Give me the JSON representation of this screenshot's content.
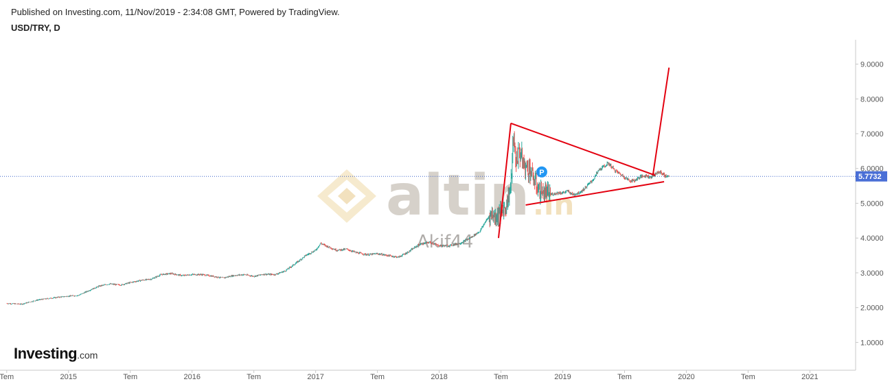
{
  "header": {
    "published": "Published on Investing.com, 11/Nov/2019 - 2:34:08 GMT, Powered by TradingView.",
    "symbol": "USD/TRY, D"
  },
  "logo": {
    "brand": "Investing",
    "suffix": ".com"
  },
  "watermark": {
    "brand": "altin",
    "suffix": ".in",
    "author": "Akif44"
  },
  "colors": {
    "up": "#26a69a",
    "down": "#ef5350",
    "trendline": "#e3000f",
    "price_line": "#3b63c9",
    "price_tag": "#4a6fd6",
    "marker": "#2196f3"
  },
  "marker": {
    "label": "P"
  },
  "chart_data": {
    "type": "candlestick",
    "title": "USD/TRY, D",
    "y_axis": {
      "position": "right",
      "ylim": [
        0.2,
        9.7
      ],
      "ticks": [
        "1.0000",
        "2.0000",
        "3.0000",
        "4.0000",
        "5.0000",
        "6.0000",
        "7.0000",
        "8.0000",
        "9.0000"
      ]
    },
    "x_axis": {
      "ticks": [
        {
          "label": "Tem",
          "t": 2014.5
        },
        {
          "label": "2015",
          "t": 2015.0
        },
        {
          "label": "Tem",
          "t": 2015.5
        },
        {
          "label": "2016",
          "t": 2016.0
        },
        {
          "label": "Tem",
          "t": 2016.5
        },
        {
          "label": "2017",
          "t": 2017.0
        },
        {
          "label": "Tem",
          "t": 2017.5
        },
        {
          "label": "2018",
          "t": 2018.0
        },
        {
          "label": "Tem",
          "t": 2018.5
        },
        {
          "label": "2019",
          "t": 2019.0
        },
        {
          "label": "Tem",
          "t": 2019.5
        },
        {
          "label": "2020",
          "t": 2020.0
        },
        {
          "label": "Tem",
          "t": 2020.5
        },
        {
          "label": "2021",
          "t": 2021.0
        }
      ],
      "range": [
        2014.49,
        2021.37
      ]
    },
    "last_price": "5.7732",
    "series": [
      {
        "t": 2014.5,
        "v": 2.12
      },
      {
        "t": 2014.62,
        "v": 2.1
      },
      {
        "t": 2014.75,
        "v": 2.22
      },
      {
        "t": 2014.92,
        "v": 2.3
      },
      {
        "t": 2015.0,
        "v": 2.33
      },
      {
        "t": 2015.08,
        "v": 2.35
      },
      {
        "t": 2015.17,
        "v": 2.5
      },
      {
        "t": 2015.25,
        "v": 2.62
      },
      {
        "t": 2015.33,
        "v": 2.68
      },
      {
        "t": 2015.42,
        "v": 2.65
      },
      {
        "t": 2015.5,
        "v": 2.72
      },
      {
        "t": 2015.58,
        "v": 2.78
      },
      {
        "t": 2015.67,
        "v": 2.82
      },
      {
        "t": 2015.75,
        "v": 2.95
      },
      {
        "t": 2015.83,
        "v": 2.98
      },
      {
        "t": 2015.92,
        "v": 2.92
      },
      {
        "t": 2016.0,
        "v": 2.95
      },
      {
        "t": 2016.08,
        "v": 2.95
      },
      {
        "t": 2016.17,
        "v": 2.9
      },
      {
        "t": 2016.25,
        "v": 2.85
      },
      {
        "t": 2016.33,
        "v": 2.92
      },
      {
        "t": 2016.42,
        "v": 2.95
      },
      {
        "t": 2016.5,
        "v": 2.9
      },
      {
        "t": 2016.58,
        "v": 2.96
      },
      {
        "t": 2016.67,
        "v": 2.95
      },
      {
        "t": 2016.75,
        "v": 3.05
      },
      {
        "t": 2016.83,
        "v": 3.25
      },
      {
        "t": 2016.92,
        "v": 3.5
      },
      {
        "t": 2017.0,
        "v": 3.65
      },
      {
        "t": 2017.04,
        "v": 3.85
      },
      {
        "t": 2017.08,
        "v": 3.78
      },
      {
        "t": 2017.17,
        "v": 3.65
      },
      {
        "t": 2017.25,
        "v": 3.68
      },
      {
        "t": 2017.33,
        "v": 3.58
      },
      {
        "t": 2017.42,
        "v": 3.52
      },
      {
        "t": 2017.5,
        "v": 3.55
      },
      {
        "t": 2017.58,
        "v": 3.5
      },
      {
        "t": 2017.67,
        "v": 3.45
      },
      {
        "t": 2017.75,
        "v": 3.6
      },
      {
        "t": 2017.83,
        "v": 3.8
      },
      {
        "t": 2017.92,
        "v": 3.88
      },
      {
        "t": 2018.0,
        "v": 3.78
      },
      {
        "t": 2018.08,
        "v": 3.78
      },
      {
        "t": 2018.17,
        "v": 3.85
      },
      {
        "t": 2018.25,
        "v": 4.0
      },
      {
        "t": 2018.33,
        "v": 4.2
      },
      {
        "t": 2018.37,
        "v": 4.45
      },
      {
        "t": 2018.42,
        "v": 4.7
      },
      {
        "t": 2018.46,
        "v": 4.6
      },
      {
        "t": 2018.5,
        "v": 4.75
      },
      {
        "t": 2018.54,
        "v": 4.9
      },
      {
        "t": 2018.58,
        "v": 5.5
      },
      {
        "t": 2018.6,
        "v": 6.9
      },
      {
        "t": 2018.62,
        "v": 6.2
      },
      {
        "t": 2018.65,
        "v": 6.5
      },
      {
        "t": 2018.69,
        "v": 6.05
      },
      {
        "t": 2018.73,
        "v": 6.0
      },
      {
        "t": 2018.77,
        "v": 5.65
      },
      {
        "t": 2018.81,
        "v": 5.35
      },
      {
        "t": 2018.85,
        "v": 5.3
      },
      {
        "t": 2018.9,
        "v": 5.25
      },
      {
        "t": 2018.96,
        "v": 5.3
      },
      {
        "t": 2019.0,
        "v": 5.3
      },
      {
        "t": 2019.04,
        "v": 5.35
      },
      {
        "t": 2019.08,
        "v": 5.25
      },
      {
        "t": 2019.13,
        "v": 5.3
      },
      {
        "t": 2019.17,
        "v": 5.4
      },
      {
        "t": 2019.21,
        "v": 5.55
      },
      {
        "t": 2019.25,
        "v": 5.7
      },
      {
        "t": 2019.29,
        "v": 5.95
      },
      {
        "t": 2019.33,
        "v": 6.05
      },
      {
        "t": 2019.37,
        "v": 6.15
      },
      {
        "t": 2019.42,
        "v": 5.95
      },
      {
        "t": 2019.46,
        "v": 5.85
      },
      {
        "t": 2019.5,
        "v": 5.75
      },
      {
        "t": 2019.54,
        "v": 5.65
      },
      {
        "t": 2019.58,
        "v": 5.65
      },
      {
        "t": 2019.62,
        "v": 5.75
      },
      {
        "t": 2019.67,
        "v": 5.8
      },
      {
        "t": 2019.71,
        "v": 5.75
      },
      {
        "t": 2019.75,
        "v": 5.85
      },
      {
        "t": 2019.79,
        "v": 5.9
      },
      {
        "t": 2019.83,
        "v": 5.78
      },
      {
        "t": 2019.86,
        "v": 5.77
      }
    ],
    "annotations": {
      "trend_lines": [
        {
          "from": [
            2018.48,
            4.0
          ],
          "to": [
            2018.58,
            7.3
          ]
        },
        {
          "from": [
            2018.58,
            7.3
          ],
          "to": [
            2019.75,
            5.8
          ]
        },
        {
          "from": [
            2018.7,
            4.95
          ],
          "to": [
            2019.82,
            5.62
          ]
        },
        {
          "from": [
            2019.73,
            5.82
          ],
          "to": [
            2019.86,
            8.9
          ]
        }
      ],
      "marker_point": {
        "t": 2018.83,
        "v": 5.9
      }
    }
  }
}
